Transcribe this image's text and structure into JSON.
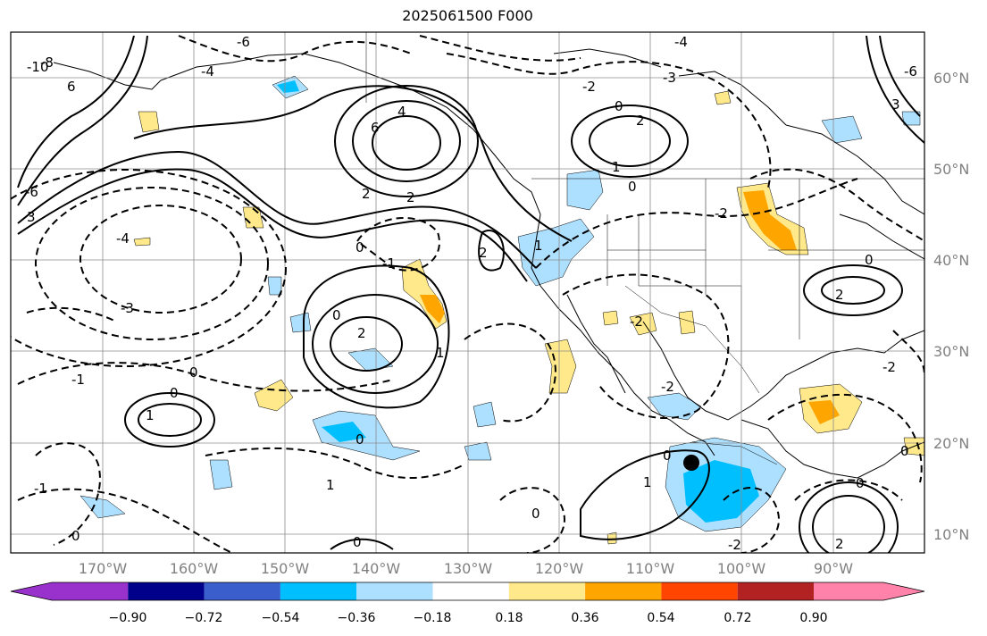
{
  "title": "2025061500 F000",
  "latitude_labels": [
    "60°N",
    "50°N",
    "40°N",
    "30°N",
    "20°N",
    "10°N"
  ],
  "longitude_labels": [
    "170°W",
    "160°W",
    "150°W",
    "140°W",
    "130°W",
    "120°W",
    "110°W",
    "100°W",
    "90°W"
  ],
  "colorbar": {
    "tick_labels": [
      "−0.90",
      "−0.72",
      "−0.54",
      "−0.36",
      "−0.18",
      "0.18",
      "0.36",
      "0.54",
      "0.72",
      "0.90"
    ],
    "colors": [
      "#9932CC",
      "#00008B",
      "#3A5FCD",
      "#00BFFF",
      "#ADDFFF",
      "#FFFFFF",
      "#FFE98A",
      "#FFA500",
      "#FF4500",
      "#B22222",
      "#FF82AB"
    ]
  },
  "contour_labels": [
    "6",
    "4",
    "2",
    "0",
    "-1",
    "-2",
    "-3",
    "-4",
    "-6",
    "-8",
    "-10",
    "1",
    "3"
  ],
  "map_extent": {
    "lon_min": -180,
    "lon_max": -80,
    "lat_min": 8,
    "lat_max": 65
  }
}
